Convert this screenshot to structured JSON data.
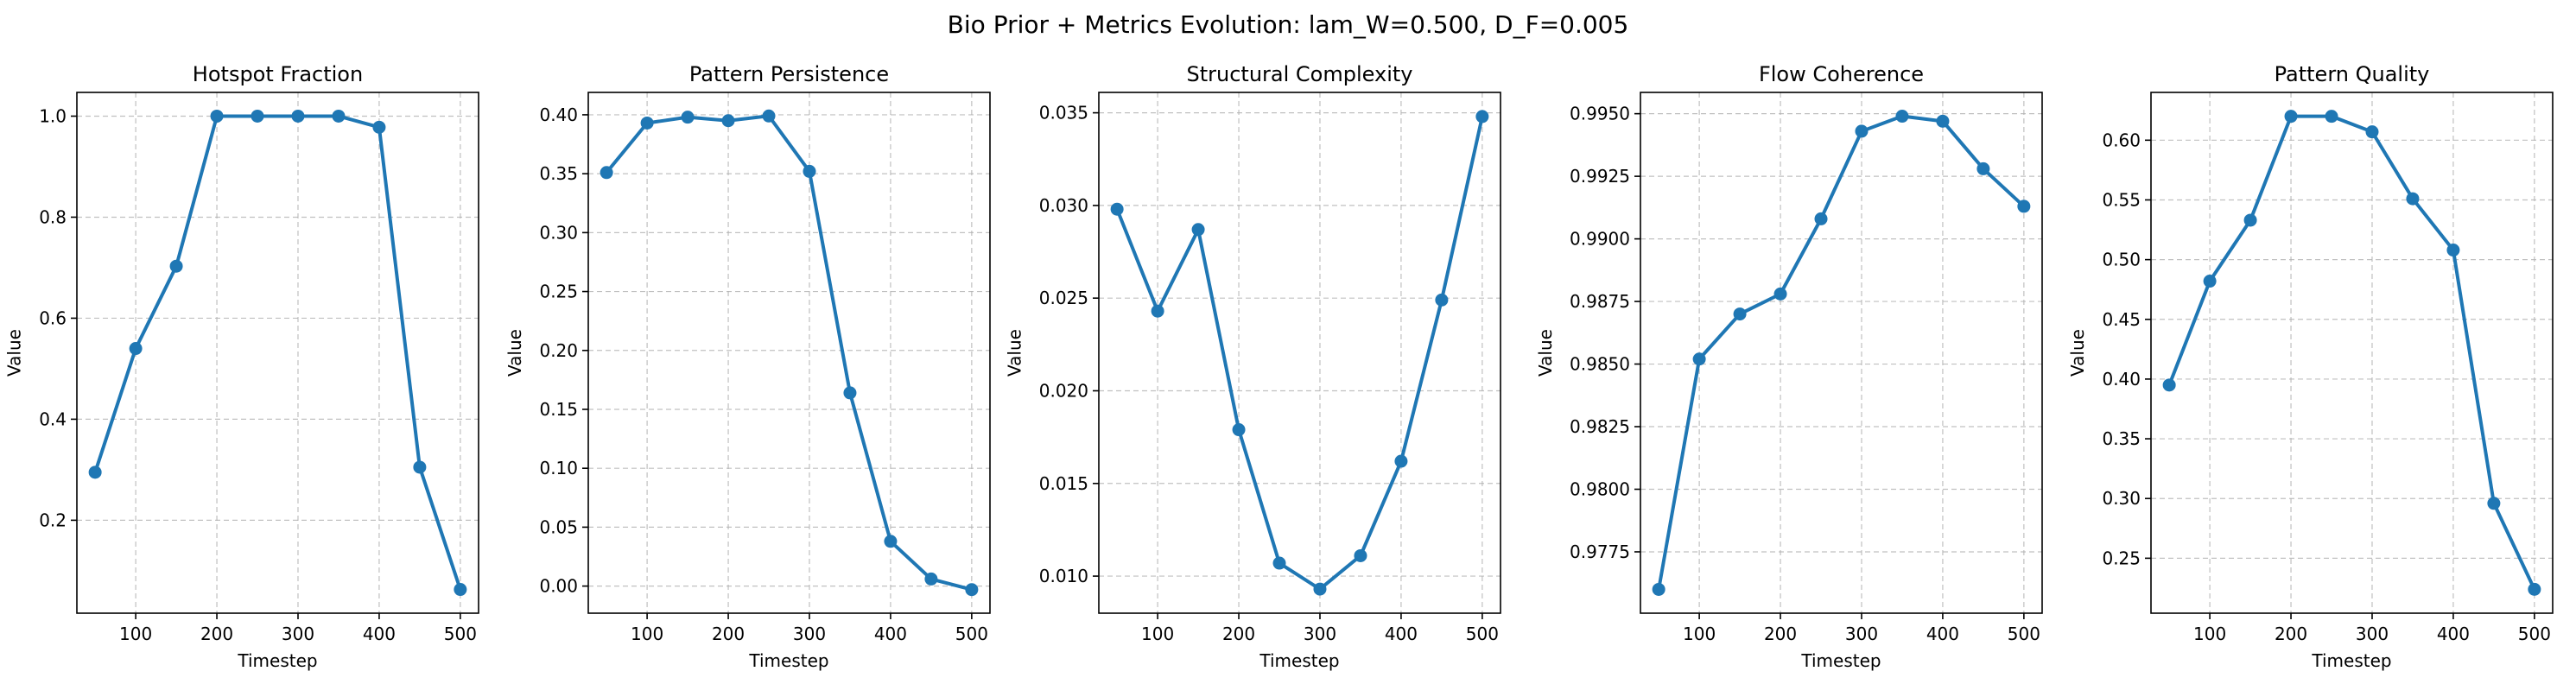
{
  "figure": {
    "suptitle": "Bio Prior + Metrics Evolution: lam_W=0.500, D_F=0.005"
  },
  "style": {
    "line_color": "#1f77b4",
    "grid_color": "#b0b0b0",
    "axes_color": "#000000"
  },
  "chart_data": [
    {
      "type": "line",
      "title": "Hotspot Fraction",
      "xlabel": "Timestep",
      "ylabel": "Value",
      "x": [
        50,
        100,
        150,
        200,
        250,
        300,
        350,
        400,
        450,
        500
      ],
      "values": [
        0.295,
        0.54,
        0.703,
        1.0,
        1.0,
        1.0,
        1.0,
        0.978,
        0.305,
        0.063
      ],
      "xlim": [
        27.5,
        522.5
      ],
      "ylim": [
        0.016,
        1.047
      ],
      "xticks": [
        100,
        200,
        300,
        400,
        500
      ],
      "xtick_labels": [
        "100",
        "200",
        "300",
        "400",
        "500"
      ],
      "yticks": [
        0.2,
        0.4,
        0.6,
        0.8,
        1.0
      ],
      "ytick_labels": [
        "0.2",
        "0.4",
        "0.6",
        "0.8",
        "1.0"
      ],
      "grid": true
    },
    {
      "type": "line",
      "title": "Pattern Persistence",
      "xlabel": "Timestep",
      "ylabel": "Value",
      "x": [
        50,
        100,
        150,
        200,
        250,
        300,
        350,
        400,
        450,
        500
      ],
      "values": [
        0.351,
        0.393,
        0.398,
        0.395,
        0.399,
        0.352,
        0.164,
        0.038,
        0.006,
        -0.003
      ],
      "xlim": [
        27.5,
        522.5
      ],
      "ylim": [
        -0.023,
        0.419
      ],
      "xticks": [
        100,
        200,
        300,
        400,
        500
      ],
      "xtick_labels": [
        "100",
        "200",
        "300",
        "400",
        "500"
      ],
      "yticks": [
        0.0,
        0.05,
        0.1,
        0.15,
        0.2,
        0.25,
        0.3,
        0.35,
        0.4
      ],
      "ytick_labels": [
        "0.00",
        "0.05",
        "0.10",
        "0.15",
        "0.20",
        "0.25",
        "0.30",
        "0.35",
        "0.40"
      ],
      "grid": true
    },
    {
      "type": "line",
      "title": "Structural Complexity",
      "xlabel": "Timestep",
      "ylabel": "Value",
      "x": [
        50,
        100,
        150,
        200,
        250,
        300,
        350,
        400,
        450,
        500
      ],
      "values": [
        0.0298,
        0.0243,
        0.0287,
        0.0179,
        0.0107,
        0.0093,
        0.0111,
        0.0162,
        0.0249,
        0.0348
      ],
      "xlim": [
        27.5,
        522.5
      ],
      "ylim": [
        0.008,
        0.0361
      ],
      "xticks": [
        100,
        200,
        300,
        400,
        500
      ],
      "xtick_labels": [
        "100",
        "200",
        "300",
        "400",
        "500"
      ],
      "yticks": [
        0.01,
        0.015,
        0.02,
        0.025,
        0.03,
        0.035
      ],
      "ytick_labels": [
        "0.010",
        "0.015",
        "0.020",
        "0.025",
        "0.030",
        "0.035"
      ],
      "grid": true
    },
    {
      "type": "line",
      "title": "Flow Coherence",
      "xlabel": "Timestep",
      "ylabel": "Value",
      "x": [
        50,
        100,
        150,
        200,
        250,
        300,
        350,
        400,
        450,
        500
      ],
      "values": [
        0.976,
        0.9852,
        0.987,
        0.9878,
        0.9908,
        0.9943,
        0.9949,
        0.9947,
        0.9928,
        0.9913
      ],
      "xlim": [
        27.5,
        522.5
      ],
      "ylim": [
        0.97505,
        0.99585
      ],
      "xticks": [
        100,
        200,
        300,
        400,
        500
      ],
      "xtick_labels": [
        "100",
        "200",
        "300",
        "400",
        "500"
      ],
      "yticks": [
        0.9775,
        0.98,
        0.9825,
        0.985,
        0.9875,
        0.99,
        0.9925,
        0.995
      ],
      "ytick_labels": [
        "0.9775",
        "0.9800",
        "0.9825",
        "0.9850",
        "0.9875",
        "0.9900",
        "0.9925",
        "0.9950"
      ],
      "grid": true
    },
    {
      "type": "line",
      "title": "Pattern Quality",
      "xlabel": "Timestep",
      "ylabel": "Value",
      "x": [
        50,
        100,
        150,
        200,
        250,
        300,
        350,
        400,
        450,
        500
      ],
      "values": [
        0.395,
        0.482,
        0.533,
        0.62,
        0.62,
        0.607,
        0.551,
        0.508,
        0.296,
        0.224
      ],
      "xlim": [
        27.5,
        522.5
      ],
      "ylim": [
        0.204,
        0.64
      ],
      "xticks": [
        100,
        200,
        300,
        400,
        500
      ],
      "xtick_labels": [
        "100",
        "200",
        "300",
        "400",
        "500"
      ],
      "yticks": [
        0.25,
        0.3,
        0.35,
        0.4,
        0.45,
        0.5,
        0.55,
        0.6
      ],
      "ytick_labels": [
        "0.25",
        "0.30",
        "0.35",
        "0.40",
        "0.45",
        "0.50",
        "0.55",
        "0.60"
      ],
      "grid": true
    }
  ]
}
